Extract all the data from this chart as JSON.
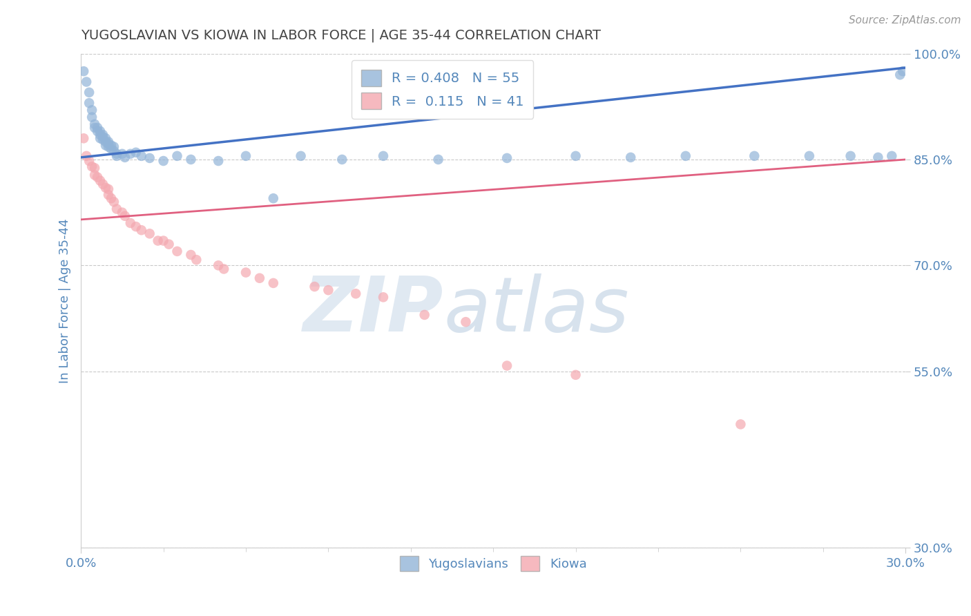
{
  "title": "YUGOSLAVIAN VS KIOWA IN LABOR FORCE | AGE 35-44 CORRELATION CHART",
  "source": "Source: ZipAtlas.com",
  "ylabel": "In Labor Force | Age 35-44",
  "xlim": [
    0.0,
    0.3
  ],
  "ylim": [
    0.3,
    1.0
  ],
  "xtick_labels": [
    "0.0%",
    "30.0%"
  ],
  "ytick_labels": [
    "100.0%",
    "85.0%",
    "70.0%",
    "55.0%",
    "30.0%"
  ],
  "ytick_values": [
    1.0,
    0.85,
    0.7,
    0.55,
    0.3
  ],
  "legend_labels": [
    "Yugoslavians",
    "Kiowa"
  ],
  "legend_R": [
    0.408,
    0.115
  ],
  "legend_N": [
    55,
    41
  ],
  "blue_color": "#92B4D8",
  "pink_color": "#F4A8B0",
  "line_blue": "#4472C4",
  "line_pink": "#E06080",
  "watermark_color": "#C8D8E8",
  "title_color": "#444444",
  "axis_label_color": "#5588BB",
  "blue_scatter_x": [
    0.001,
    0.002,
    0.003,
    0.003,
    0.004,
    0.004,
    0.005,
    0.005,
    0.006,
    0.006,
    0.007,
    0.007,
    0.007,
    0.008,
    0.008,
    0.008,
    0.009,
    0.009,
    0.009,
    0.01,
    0.01,
    0.01,
    0.011,
    0.011,
    0.012,
    0.012,
    0.013,
    0.013,
    0.015,
    0.016,
    0.018,
    0.02,
    0.022,
    0.025,
    0.03,
    0.035,
    0.04,
    0.05,
    0.06,
    0.07,
    0.08,
    0.095,
    0.11,
    0.13,
    0.155,
    0.18,
    0.2,
    0.22,
    0.245,
    0.265,
    0.28,
    0.29,
    0.295,
    0.298,
    0.299
  ],
  "blue_scatter_y": [
    0.975,
    0.96,
    0.945,
    0.93,
    0.92,
    0.91,
    0.9,
    0.895,
    0.895,
    0.89,
    0.89,
    0.885,
    0.88,
    0.885,
    0.882,
    0.878,
    0.88,
    0.875,
    0.87,
    0.875,
    0.872,
    0.868,
    0.87,
    0.865,
    0.868,
    0.862,
    0.858,
    0.855,
    0.858,
    0.853,
    0.858,
    0.86,
    0.855,
    0.852,
    0.848,
    0.855,
    0.85,
    0.848,
    0.855,
    0.795,
    0.855,
    0.85,
    0.855,
    0.85,
    0.852,
    0.855,
    0.853,
    0.855,
    0.855,
    0.855,
    0.855,
    0.853,
    0.855,
    0.97,
    0.975
  ],
  "pink_scatter_x": [
    0.001,
    0.002,
    0.003,
    0.004,
    0.005,
    0.005,
    0.006,
    0.007,
    0.008,
    0.009,
    0.01,
    0.01,
    0.011,
    0.012,
    0.013,
    0.015,
    0.016,
    0.018,
    0.02,
    0.022,
    0.025,
    0.028,
    0.03,
    0.032,
    0.035,
    0.04,
    0.042,
    0.05,
    0.052,
    0.06,
    0.065,
    0.07,
    0.085,
    0.09,
    0.1,
    0.11,
    0.125,
    0.14,
    0.155,
    0.18,
    0.24
  ],
  "pink_scatter_y": [
    0.88,
    0.855,
    0.848,
    0.84,
    0.838,
    0.828,
    0.825,
    0.82,
    0.815,
    0.81,
    0.808,
    0.8,
    0.795,
    0.79,
    0.78,
    0.775,
    0.77,
    0.76,
    0.755,
    0.75,
    0.745,
    0.735,
    0.735,
    0.73,
    0.72,
    0.715,
    0.708,
    0.7,
    0.695,
    0.69,
    0.682,
    0.675,
    0.67,
    0.665,
    0.66,
    0.655,
    0.63,
    0.62,
    0.558,
    0.545,
    0.475
  ],
  "blue_line_x": [
    0.0,
    0.3
  ],
  "blue_line_y": [
    0.853,
    0.98
  ],
  "pink_line_x": [
    0.0,
    0.3
  ],
  "pink_line_y": [
    0.765,
    0.85
  ]
}
